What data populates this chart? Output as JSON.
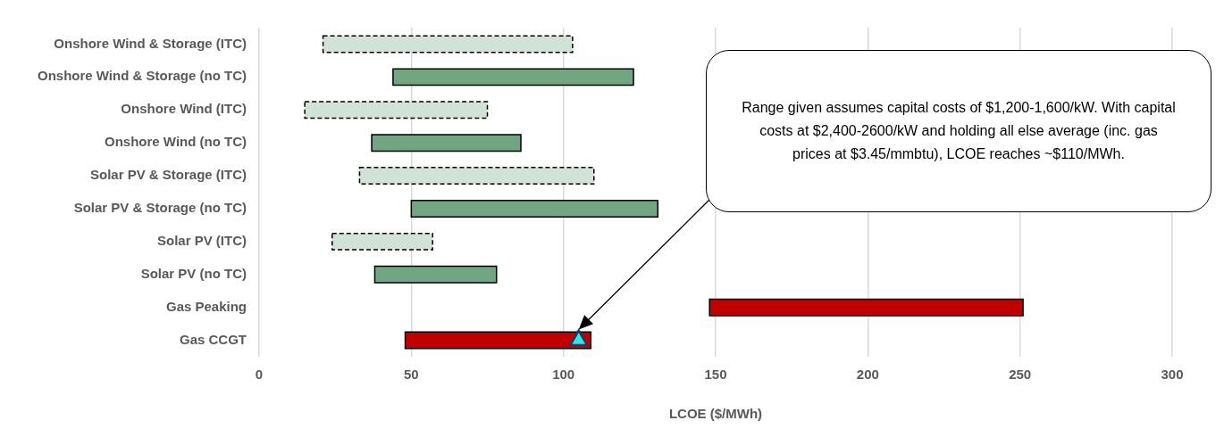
{
  "chart_data": {
    "type": "bar",
    "orientation": "horizontal",
    "xlabel": "LCOE ($/MWh)",
    "categories": [
      "Onshore Wind & Storage (ITC)",
      "Onshore Wind & Storage (no TC)",
      "Onshore Wind (ITC)",
      "Onshore Wind (no TC)",
      "Solar PV & Storage (ITC)",
      "Solar PV & Storage (no TC)",
      "Solar PV (ITC)",
      "Solar PV (no TC)",
      "Gas Peaking",
      "Gas CCGT"
    ],
    "series": [
      {
        "color": "#d0e3d6",
        "line_style": "dashed",
        "base": [
          21,
          null,
          15,
          null,
          33,
          null,
          24,
          null,
          null,
          null
        ],
        "values": [
          82,
          null,
          60,
          null,
          77,
          null,
          33,
          null,
          null,
          null
        ]
      },
      {
        "color": "#72a582",
        "line_style": "solid",
        "base": [
          null,
          44,
          null,
          37,
          null,
          50,
          null,
          38,
          null,
          null
        ],
        "values": [
          null,
          79,
          null,
          49,
          null,
          81,
          null,
          40,
          null,
          null
        ]
      },
      {
        "color": "#c00000",
        "line_style": "solid",
        "base": [
          null,
          null,
          null,
          null,
          null,
          null,
          null,
          null,
          148,
          48
        ],
        "values": [
          null,
          null,
          null,
          null,
          null,
          null,
          null,
          null,
          103,
          61
        ]
      },
      {
        "type": "scatter",
        "marker": "triangle",
        "color": "#33e8e0",
        "x": [
          "Gas CCGT"
        ],
        "values": [
          105
        ]
      }
    ],
    "xlim": [
      0,
      300
    ],
    "xticks": [
      0,
      50,
      100,
      150,
      200,
      250,
      300
    ],
    "grid": "x",
    "annotations": [
      "Range given assumes capital costs of $1,200-1,600/kW. With capital costs at $2,400-2600/kW and holding all else average (inc. gas prices at $3.45/mmbtu), LCOE reaches ~$110/MWh."
    ]
  }
}
